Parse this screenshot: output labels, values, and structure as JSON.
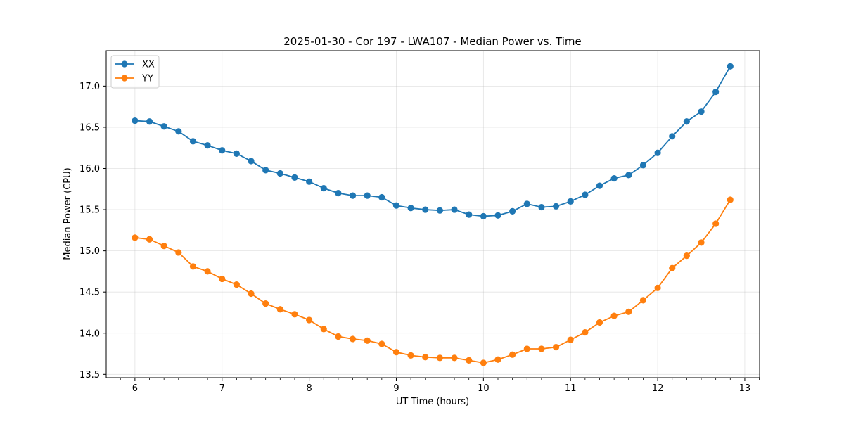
{
  "chart_data": {
    "type": "line",
    "title": "2025-01-30 - Cor 197 - LWA107 - Median Power vs. Time",
    "xlabel": "UT Time (hours)",
    "ylabel": "Median Power (CPU)",
    "xlim": [
      5.67,
      13.17
    ],
    "ylim": [
      13.46,
      17.43
    ],
    "xticks": [
      6,
      7,
      8,
      9,
      10,
      11,
      12,
      13
    ],
    "xtick_labels": [
      "6",
      "7",
      "8",
      "9",
      "10",
      "11",
      "12",
      "13"
    ],
    "yticks": [
      13.5,
      14.0,
      14.5,
      15.0,
      15.5,
      16.0,
      16.5,
      17.0
    ],
    "ytick_labels": [
      "13.5",
      "14.0",
      "14.5",
      "15.0",
      "15.5",
      "16.0",
      "16.5",
      "17.0"
    ],
    "grid": true,
    "legend_position": "top-left",
    "x": [
      6.0,
      6.1667,
      6.3333,
      6.5,
      6.6667,
      6.8333,
      7.0,
      7.1667,
      7.3333,
      7.5,
      7.6667,
      7.8333,
      8.0,
      8.1667,
      8.3333,
      8.5,
      8.6667,
      8.8333,
      9.0,
      9.1667,
      9.3333,
      9.5,
      9.6667,
      9.8333,
      10.0,
      10.1667,
      10.3333,
      10.5,
      10.6667,
      10.8333,
      11.0,
      11.1667,
      11.3333,
      11.5,
      11.6667,
      11.8333,
      12.0,
      12.1667,
      12.3333,
      12.5,
      12.6667,
      12.8333
    ],
    "series": [
      {
        "name": "XX",
        "color": "#1f77b4",
        "values": [
          16.58,
          16.57,
          16.51,
          16.45,
          16.33,
          16.28,
          16.22,
          16.18,
          16.09,
          15.98,
          15.94,
          15.89,
          15.84,
          15.76,
          15.7,
          15.67,
          15.67,
          15.65,
          15.55,
          15.52,
          15.5,
          15.49,
          15.5,
          15.44,
          15.42,
          15.43,
          15.48,
          15.57,
          15.53,
          15.54,
          15.6,
          15.68,
          15.79,
          15.88,
          15.92,
          16.04,
          16.19,
          16.39,
          16.57,
          16.69,
          16.93,
          17.24
        ]
      },
      {
        "name": "YY",
        "color": "#ff7f0e",
        "values": [
          15.16,
          15.14,
          15.06,
          14.98,
          14.81,
          14.75,
          14.66,
          14.59,
          14.48,
          14.36,
          14.29,
          14.23,
          14.16,
          14.05,
          13.96,
          13.93,
          13.91,
          13.87,
          13.77,
          13.73,
          13.71,
          13.7,
          13.7,
          13.67,
          13.64,
          13.68,
          13.74,
          13.81,
          13.81,
          13.83,
          13.92,
          14.01,
          14.13,
          14.21,
          14.26,
          14.4,
          14.55,
          14.79,
          14.94,
          15.1,
          15.33,
          15.62
        ]
      }
    ]
  }
}
